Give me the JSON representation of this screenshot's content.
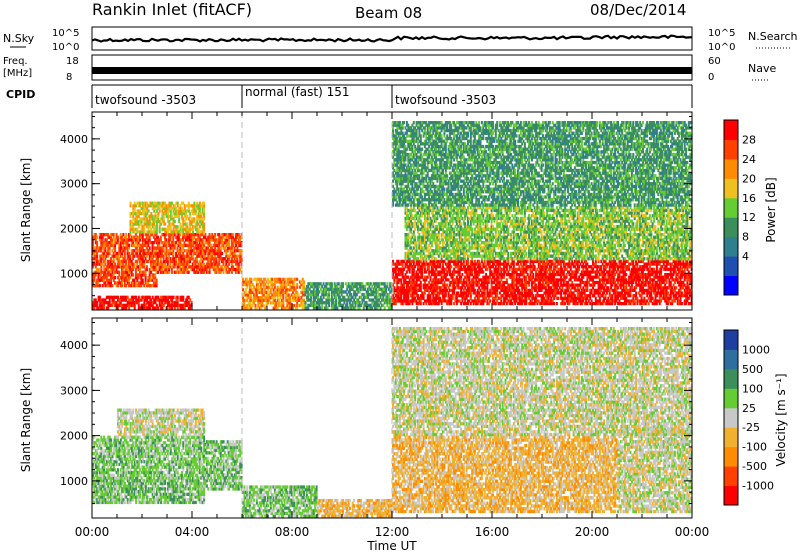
{
  "header": {
    "station": "Rankin Inlet (fitACF)",
    "beam": "Beam 08",
    "date": "08/Dec/2014"
  },
  "noise_panel": {
    "left_label": "N.Sky",
    "right_label": "N.Search",
    "left_ticks": [
      "10^5",
      "10^0"
    ],
    "right_ticks": [
      "10^5",
      "10^0"
    ]
  },
  "freq_panel": {
    "left_label_1": "Freq.",
    "left_label_2": "[MHz]",
    "right_label": "Nave",
    "left_ticks": [
      "18",
      "8"
    ],
    "right_ticks": [
      "60",
      "0"
    ]
  },
  "cpid_panel": {
    "label": "CPID",
    "segments": [
      {
        "name": "twofsound -3503",
        "start_hour": 0,
        "end_hour": 6
      },
      {
        "name": "normal (fast) 151",
        "start_hour": 6,
        "end_hour": 12
      },
      {
        "name": "twofsound -3503",
        "start_hour": 12,
        "end_hour": 24
      }
    ]
  },
  "power_panel": {
    "ylabel": "Slant Range [km]",
    "yticks": [
      "4000",
      "3000",
      "2000",
      "1000"
    ],
    "colorbar_label": "Power [dB]",
    "colorbar_ticks": [
      "28",
      "24",
      "20",
      "16",
      "12",
      "8",
      "4"
    ],
    "colors": [
      "#0000ff",
      "#1f4fb0",
      "#2f7f8f",
      "#3c8f5a",
      "#66cc33",
      "#f0c020",
      "#ff8c00",
      "#ff4000",
      "#ff0000"
    ]
  },
  "velocity_panel": {
    "ylabel": "Slant Range [km]",
    "yticks": [
      "4000",
      "3000",
      "2000",
      "1000"
    ],
    "colorbar_label": "Velocity [m s⁻¹]",
    "colorbar_ticks": [
      "1000",
      "500",
      "100",
      "25",
      "-25",
      "-100",
      "-500",
      "-1000"
    ],
    "colors": [
      "#1f3fa0",
      "#2f6f9f",
      "#3c8f5a",
      "#66cc33",
      "#c8c8c8",
      "#f0b030",
      "#ff8c00",
      "#ff4000",
      "#ff0000"
    ]
  },
  "xaxis": {
    "label": "Time UT",
    "ticks": [
      "00:00",
      "04:00",
      "08:00",
      "12:00",
      "16:00",
      "20:00",
      "00:00"
    ]
  },
  "chart_data": {
    "type": "heatmap",
    "title": "Rankin Inlet (fitACF) Beam 08 08/Dec/2014",
    "xlabel": "Time UT",
    "ylabel": "Slant Range [km]",
    "xlim_hours": [
      0,
      24
    ],
    "ylim_km": [
      180,
      4600
    ],
    "panels": [
      {
        "name": "Power [dB]",
        "colorbar_range": [
          0,
          30
        ],
        "regions": [
          {
            "t0": 0.0,
            "t1": 2.6,
            "r0": 700,
            "r1": 1900,
            "value": 26
          },
          {
            "t0": 2.6,
            "t1": 6.0,
            "r0": 1000,
            "r1": 1900,
            "value": 24
          },
          {
            "t0": 1.5,
            "t1": 4.5,
            "r0": 1900,
            "r1": 2600,
            "value": 18
          },
          {
            "t0": 0.0,
            "t1": 4.0,
            "r0": 200,
            "r1": 500,
            "value": 27
          },
          {
            "t0": 6.0,
            "t1": 8.5,
            "r0": 200,
            "r1": 900,
            "value": 22
          },
          {
            "t0": 8.5,
            "t1": 12.0,
            "r0": 200,
            "r1": 800,
            "value": 10
          },
          {
            "t0": 12.0,
            "t1": 24.0,
            "r0": 300,
            "r1": 1300,
            "value": 27
          },
          {
            "t0": 12.5,
            "t1": 24.0,
            "r0": 1300,
            "r1": 2500,
            "value": 14
          },
          {
            "t0": 12.0,
            "t1": 24.0,
            "r0": 2500,
            "r1": 4400,
            "value": 10
          }
        ]
      },
      {
        "name": "Velocity [m s⁻¹]",
        "colorbar_range": [
          -1000,
          1000
        ],
        "regions": [
          {
            "t0": 0.0,
            "t1": 4.5,
            "r0": 500,
            "r1": 2000,
            "value": 200
          },
          {
            "t0": 1.0,
            "t1": 4.5,
            "r0": 2000,
            "r1": 2600,
            "value": 0
          },
          {
            "t0": 4.5,
            "t1": 6.0,
            "r0": 800,
            "r1": 1900,
            "value": 150
          },
          {
            "t0": 6.0,
            "t1": 9.0,
            "r0": 200,
            "r1": 900,
            "value": 120
          },
          {
            "t0": 9.0,
            "t1": 12.0,
            "r0": 200,
            "r1": 600,
            "value": -150
          },
          {
            "t0": 12.0,
            "t1": 21.0,
            "r0": 300,
            "r1": 2000,
            "value": -200
          },
          {
            "t0": 21.0,
            "t1": 24.0,
            "r0": 300,
            "r1": 2200,
            "value": 60
          },
          {
            "t0": 12.0,
            "t1": 24.0,
            "r0": 2000,
            "r1": 4400,
            "value": 50
          }
        ]
      }
    ]
  }
}
